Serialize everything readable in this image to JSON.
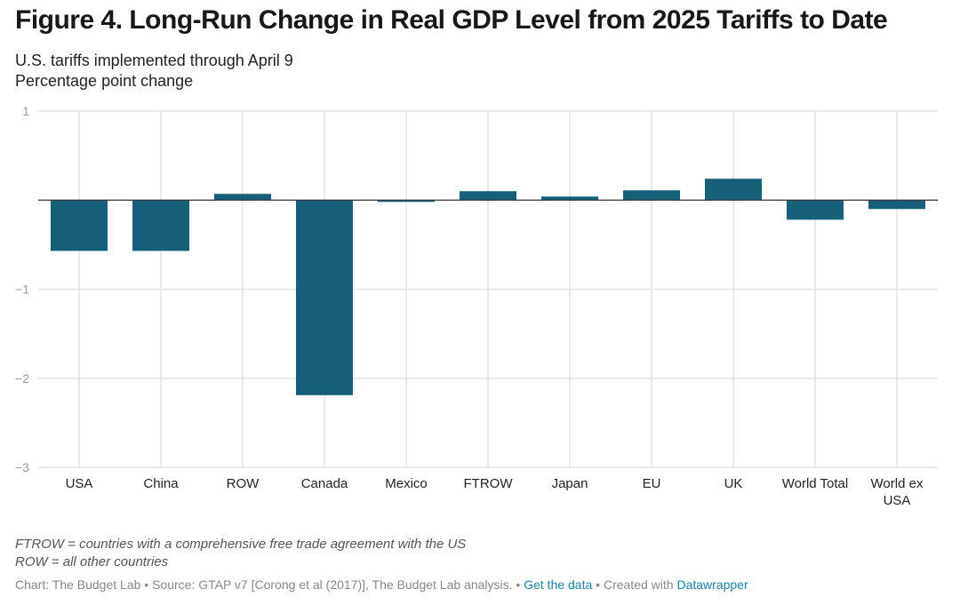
{
  "title": "Figure 4. Long-Run Change in Real GDP Level from 2025 Tariffs to Date",
  "subtitle_line1": "U.S. tariffs implemented through April 9",
  "subtitle_line2": "Percentage point change",
  "notes": {
    "line1": "FTROW = countries with a comprehensive free trade agreement with the US",
    "line2": "ROW = all other countries"
  },
  "footer": {
    "source_text": "Chart: The Budget Lab • Source: GTAP v7 [Corong et al (2017)], The Budget Lab analysis. • ",
    "data_link": "Get the data",
    "created_text": " • Created with ",
    "tool_link": "Datawrapper"
  },
  "colors": {
    "bar": "#17607a",
    "grid": "#e3e3e3",
    "zero_line": "#333333",
    "link": "#1d81a2"
  },
  "chart_data": {
    "type": "bar",
    "categories": [
      "USA",
      "China",
      "ROW",
      "Canada",
      "Mexico",
      "FTROW",
      "Japan",
      "EU",
      "UK",
      "World Total",
      "World ex USA"
    ],
    "category_label_lines": [
      [
        "USA"
      ],
      [
        "China"
      ],
      [
        "ROW"
      ],
      [
        "Canada"
      ],
      [
        "Mexico"
      ],
      [
        "FTROW"
      ],
      [
        "Japan"
      ],
      [
        "EU"
      ],
      [
        "UK"
      ],
      [
        "World Total"
      ],
      [
        "World ex",
        "USA"
      ]
    ],
    "values": [
      -0.57,
      -0.57,
      0.07,
      -2.19,
      -0.02,
      0.1,
      0.04,
      0.11,
      0.24,
      -0.22,
      -0.1
    ],
    "ylim": [
      -3,
      1
    ],
    "yticks": [
      1,
      0,
      -1,
      -2,
      -3
    ],
    "ytick_labels": [
      "1",
      "",
      "−1",
      "−2",
      "−3"
    ],
    "grid": true,
    "xlabel": "",
    "ylabel": ""
  }
}
